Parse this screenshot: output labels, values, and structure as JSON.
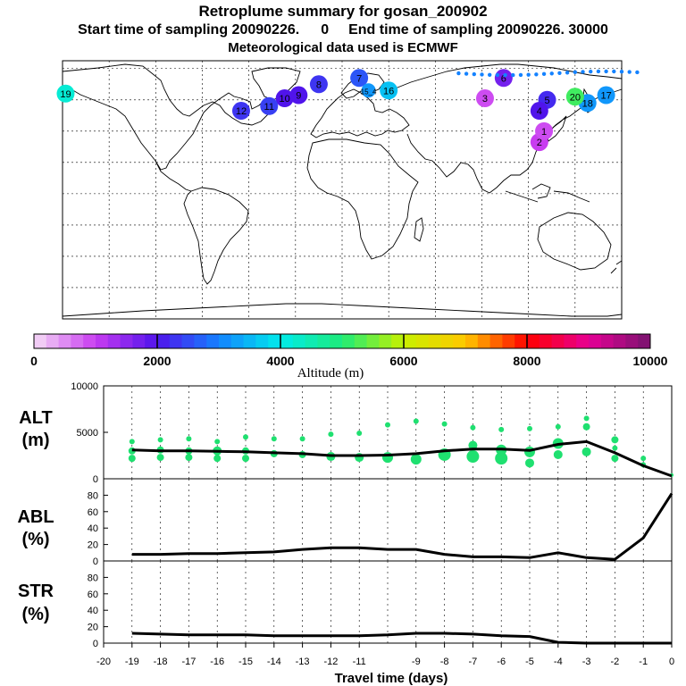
{
  "header": {
    "title": "Retroplume summary for gosan_200902",
    "start_label": "Start time of sampling 20090226.",
    "start_hour": "0",
    "end_label": "End time of sampling 20090226. 30000",
    "met_label": "Meteorological data used is ECMWF"
  },
  "colorbar": {
    "label": "Altitude (m)",
    "ticks": [
      "0",
      "2000",
      "4000",
      "6000",
      "8000",
      "10000"
    ]
  },
  "panels": {
    "alt": {
      "label": "ALT",
      "unit": "(m)"
    },
    "abl": {
      "label": "ABL",
      "unit": "(%)"
    },
    "str": {
      "label": "STR",
      "unit": "(%)"
    }
  },
  "chart_data": [
    {
      "type": "line",
      "title": "ALT",
      "ylabel": "ALT (m)",
      "xlabel": "Travel time (days)",
      "x": [
        -19,
        -18,
        -17,
        -16,
        -15,
        -14,
        -13,
        -12,
        -11,
        -10,
        -9,
        -8,
        -7,
        -6,
        -5,
        -4,
        -3,
        -2,
        -1,
        0
      ],
      "values": [
        3100,
        3000,
        3000,
        2950,
        2900,
        2800,
        2700,
        2500,
        2500,
        2550,
        2700,
        3000,
        3200,
        3200,
        3050,
        3700,
        4000,
        2800,
        1400,
        300
      ],
      "ylim": [
        0,
        10000
      ],
      "yticks": [
        0,
        5000,
        10000
      ],
      "scatter_x": [
        -19,
        -19,
        -19,
        -18,
        -18,
        -18,
        -17,
        -17,
        -17,
        -16,
        -16,
        -16,
        -15,
        -15,
        -15,
        -14,
        -14,
        -13,
        -13,
        -12,
        -12,
        -11,
        -11,
        -10,
        -10,
        -9,
        -9,
        -8,
        -8,
        -7,
        -7,
        -7,
        -6,
        -6,
        -6,
        -5,
        -5,
        -5,
        -4,
        -4,
        -4,
        -3,
        -3,
        -3,
        -2,
        -2,
        -2,
        -1,
        -1,
        0
      ],
      "scatter_y": [
        4000,
        3000,
        2200,
        4200,
        3100,
        2300,
        4300,
        3000,
        2300,
        4000,
        3000,
        2200,
        4500,
        3000,
        2200,
        4300,
        2700,
        4300,
        2600,
        4800,
        2400,
        4900,
        2300,
        5800,
        2300,
        6200,
        2100,
        5900,
        2600,
        5500,
        3600,
        2400,
        5300,
        3100,
        2200,
        5400,
        2900,
        1700,
        5600,
        2600,
        3800,
        6500,
        5600,
        2900,
        4200,
        3300,
        2200,
        2200,
        1500,
        400
      ],
      "scatter_r": [
        3,
        4,
        4,
        3,
        4,
        4,
        3,
        4,
        4,
        3,
        5,
        4,
        3,
        4,
        4,
        3,
        4,
        3,
        4,
        3,
        5,
        3,
        5,
        3,
        6,
        3,
        6,
        3,
        7,
        3,
        5,
        7,
        3,
        6,
        7,
        3,
        6,
        5,
        3,
        5,
        6,
        3,
        4,
        5,
        4,
        3,
        4,
        3,
        3,
        2
      ]
    },
    {
      "type": "line",
      "title": "ABL",
      "ylabel": "ABL (%)",
      "xlabel": "Travel time (days)",
      "x": [
        -19,
        -18,
        -17,
        -16,
        -15,
        -14,
        -13,
        -12,
        -11,
        -10,
        -9,
        -8,
        -7,
        -6,
        -5,
        -4,
        -3,
        -2,
        -1,
        0
      ],
      "values": [
        8,
        8,
        9,
        9,
        10,
        11,
        14,
        16,
        16,
        14,
        14,
        8,
        5,
        5,
        4,
        10,
        4,
        2,
        28,
        82
      ],
      "ylim": [
        0,
        100
      ],
      "yticks": [
        0,
        20,
        40,
        60,
        80
      ]
    },
    {
      "type": "line",
      "title": "STR",
      "ylabel": "STR (%)",
      "xlabel": "Travel time (days)",
      "x": [
        -19,
        -18,
        -17,
        -16,
        -15,
        -14,
        -13,
        -12,
        -11,
        -10,
        -9,
        -8,
        -7,
        -6,
        -5,
        -4,
        -3,
        -2,
        -1,
        0
      ],
      "values": [
        12,
        11,
        10,
        10,
        10,
        9,
        9,
        9,
        9,
        10,
        12,
        12,
        11,
        9,
        8,
        1,
        0,
        0,
        0,
        0
      ],
      "ylim": [
        0,
        100
      ],
      "yticks": [
        0,
        20,
        40,
        60,
        80
      ],
      "xticks": [
        "-20",
        "-19",
        "-18",
        "-17",
        "-16",
        "-15",
        "-14",
        "-13",
        "-12",
        "-11",
        "-9",
        "-8",
        "-7",
        "-6",
        "-5",
        "-4",
        "-3",
        "-2",
        "-1",
        "0"
      ]
    }
  ],
  "map_markers": [
    {
      "label": "7",
      "alt": 2600,
      "lon": 11,
      "lat": 74
    },
    {
      "label": "8",
      "alt": 2300,
      "lon": -15,
      "lat": 70
    },
    {
      "label": "9",
      "alt": 2000,
      "lon": -28,
      "lat": 63
    },
    {
      "label": "10",
      "alt": 2000,
      "lon": -37,
      "lat": 61
    },
    {
      "label": "11",
      "alt": 2400,
      "lon": -47,
      "lat": 56
    },
    {
      "label": "12",
      "alt": 2300,
      "lon": -65,
      "lat": 53
    },
    {
      "label": "15_4",
      "alt": 3200,
      "lon": 17,
      "lat": 66
    },
    {
      "label": "16",
      "alt": 3600,
      "lon": 30,
      "lat": 66
    },
    {
      "label": "5",
      "alt": 2200,
      "lon": 132,
      "lat": 60
    },
    {
      "label": "4",
      "alt": 2000,
      "lon": 127,
      "lat": 53
    },
    {
      "label": "2",
      "alt": 1000,
      "lon": 127,
      "lat": 33
    },
    {
      "label": "3",
      "alt": 900,
      "lon": 92,
      "lat": 61
    },
    {
      "label": "6",
      "alt": 1700,
      "lon": 104,
      "lat": 74
    },
    {
      "label": "1",
      "alt": 900,
      "lon": 130,
      "lat": 40
    },
    {
      "label": "17",
      "alt": 3200,
      "lon": 170,
      "lat": 63
    },
    {
      "label": "18",
      "alt": 3200,
      "lon": 158,
      "lat": 58
    },
    {
      "label": "19",
      "alt": 4200,
      "lon": -178,
      "lat": 64
    },
    {
      "label": "20",
      "alt": 5200,
      "lon": 150,
      "lat": 62
    }
  ]
}
